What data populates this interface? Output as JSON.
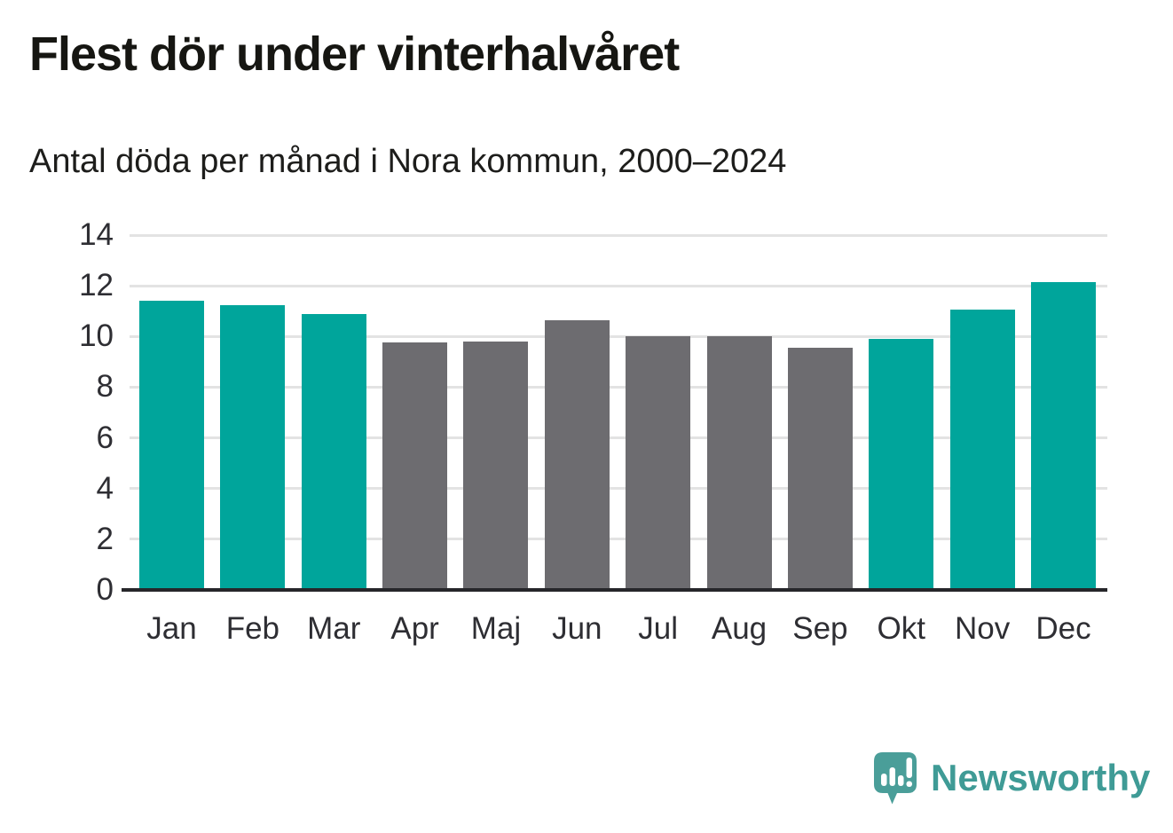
{
  "header": {
    "title": "Flest dör under vinterhalvåret",
    "subtitle": "Antal döda per månad i Nora kommun, 2000–2024"
  },
  "chart_data": {
    "type": "bar",
    "title": "Flest dör under vinterhalvåret",
    "subtitle": "Antal döda per månad i Nora kommun, 2000–2024",
    "categories": [
      "Jan",
      "Feb",
      "Mar",
      "Apr",
      "Maj",
      "Jun",
      "Jul",
      "Aug",
      "Sep",
      "Okt",
      "Nov",
      "Dec"
    ],
    "values": [
      11.4,
      11.25,
      10.9,
      9.75,
      9.8,
      10.65,
      10.0,
      10.0,
      9.55,
      9.9,
      11.05,
      12.15
    ],
    "highlighted": [
      true,
      true,
      true,
      false,
      false,
      false,
      false,
      false,
      false,
      true,
      true,
      true
    ],
    "xlabel": "",
    "ylabel": "",
    "ylim": [
      0,
      14
    ],
    "yticks": [
      0,
      2,
      4,
      6,
      8,
      10,
      12,
      14
    ],
    "grid": true,
    "legend": "none",
    "colors": {
      "highlight": "#00a59b",
      "default": "#6d6c70",
      "gridline": "#e3e3e3",
      "axis": "#26262a",
      "tick_text": "#2e2e33"
    }
  },
  "footer": {
    "brand": "Newsworthy",
    "brand_color": "#3f9b96",
    "icon_color": "#4a9e99"
  }
}
